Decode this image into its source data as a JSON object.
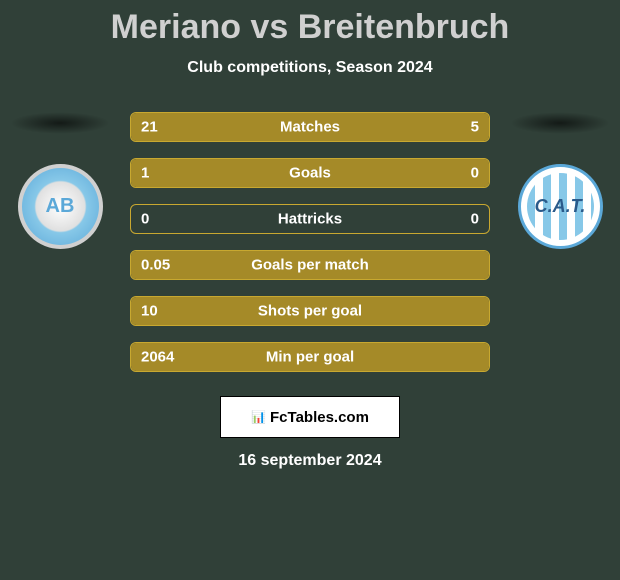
{
  "title": "Meriano vs Breitenbruch",
  "subtitle": "Club competitions, Season 2024",
  "date": "16 september 2024",
  "footer_brand": "FcTables.com",
  "colors": {
    "background": "#304038",
    "bar_filled": "#a58a28",
    "bar_empty_border": "#c8a830",
    "text": "#ffffff",
    "title_text": "#d0d0d0"
  },
  "club_left": {
    "abbrev": "AB"
  },
  "club_right": {
    "abbrev": "C.A.T."
  },
  "stats": [
    {
      "label": "Matches",
      "left_val": "21",
      "right_val": "5",
      "left_pct": 81,
      "right_pct": 19,
      "left_color": "#a58a28",
      "right_color": "#a58a28"
    },
    {
      "label": "Goals",
      "left_val": "1",
      "right_val": "0",
      "left_pct": 100,
      "right_pct": 0,
      "left_color": "#a58a28",
      "right_color": "#a58a28"
    },
    {
      "label": "Hattricks",
      "left_val": "0",
      "right_val": "0",
      "left_pct": 0,
      "right_pct": 0,
      "left_color": "#a58a28",
      "right_color": "#a58a28"
    },
    {
      "label": "Goals per match",
      "left_val": "0.05",
      "right_val": "",
      "left_pct": 100,
      "right_pct": 0,
      "left_color": "#a58a28",
      "right_color": "#a58a28"
    },
    {
      "label": "Shots per goal",
      "left_val": "10",
      "right_val": "",
      "left_pct": 100,
      "right_pct": 0,
      "left_color": "#a58a28",
      "right_color": "#a58a28"
    },
    {
      "label": "Min per goal",
      "left_val": "2064",
      "right_val": "",
      "left_pct": 100,
      "right_pct": 0,
      "left_color": "#a58a28",
      "right_color": "#a58a28"
    }
  ]
}
